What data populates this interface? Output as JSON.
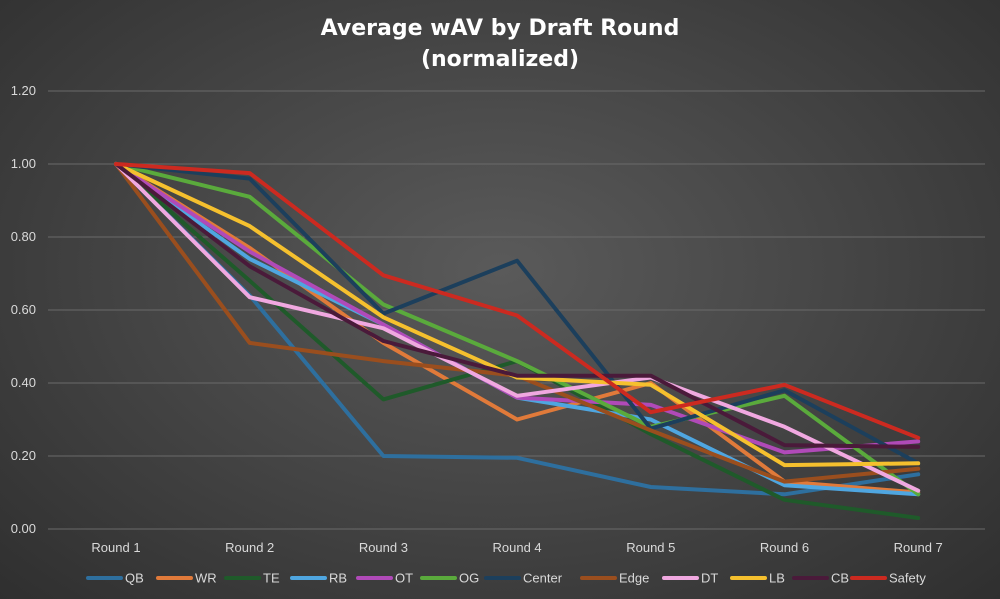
{
  "chart_data": {
    "type": "line",
    "title_line1": "Average wAV by Draft Round",
    "title_line2": "(normalized)",
    "xlabel": "",
    "ylabel": "",
    "ylim": [
      0,
      1.2
    ],
    "yticks": [
      "0.00",
      "0.20",
      "0.40",
      "0.60",
      "0.80",
      "1.00",
      "1.20"
    ],
    "yticks_values": [
      0,
      0.2,
      0.4,
      0.6,
      0.8,
      1.0,
      1.2
    ],
    "grid": true,
    "legend_position": "bottom",
    "categories": [
      "Round 1",
      "Round 2",
      "Round 3",
      "Round 4",
      "Round 5",
      "Round 6",
      "Round 7"
    ],
    "series": [
      {
        "name": "QB",
        "color": "#2e6f9e",
        "values": [
          1.0,
          0.64,
          0.2,
          0.195,
          0.115,
          0.095,
          0.15
        ]
      },
      {
        "name": "WR",
        "color": "#e07a3a",
        "values": [
          1.0,
          0.77,
          0.51,
          0.3,
          0.4,
          0.13,
          0.1
        ]
      },
      {
        "name": "TE",
        "color": "#1f5a2a",
        "values": [
          1.0,
          0.68,
          0.355,
          0.46,
          0.26,
          0.08,
          0.03
        ]
      },
      {
        "name": "RB",
        "color": "#4fa6e0",
        "values": [
          1.0,
          0.74,
          0.56,
          0.36,
          0.3,
          0.12,
          0.095
        ]
      },
      {
        "name": "OT",
        "color": "#b04ab8",
        "values": [
          1.0,
          0.76,
          0.56,
          0.36,
          0.34,
          0.21,
          0.24
        ]
      },
      {
        "name": "OG",
        "color": "#5aaa3c",
        "values": [
          1.0,
          0.91,
          0.615,
          0.46,
          0.28,
          0.365,
          0.095
        ]
      },
      {
        "name": "Center",
        "color": "#1c3f5c",
        "values": [
          1.0,
          0.96,
          0.59,
          0.735,
          0.275,
          0.38,
          0.18
        ]
      },
      {
        "name": "Edge",
        "color": "#9a4e1e",
        "values": [
          1.0,
          0.51,
          0.46,
          0.42,
          0.27,
          0.13,
          0.165
        ]
      },
      {
        "name": "DT",
        "color": "#f0a8e0",
        "values": [
          1.0,
          0.635,
          0.55,
          0.365,
          0.415,
          0.28,
          0.105
        ]
      },
      {
        "name": "LB",
        "color": "#f5c02e",
        "values": [
          1.0,
          0.83,
          0.58,
          0.415,
          0.395,
          0.175,
          0.18
        ]
      },
      {
        "name": "CB",
        "color": "#4a1a3a",
        "values": [
          1.0,
          0.72,
          0.515,
          0.42,
          0.42,
          0.23,
          0.225
        ]
      },
      {
        "name": "Safety",
        "color": "#cc2a20",
        "values": [
          1.0,
          0.975,
          0.695,
          0.585,
          0.32,
          0.395,
          0.25
        ]
      }
    ]
  }
}
